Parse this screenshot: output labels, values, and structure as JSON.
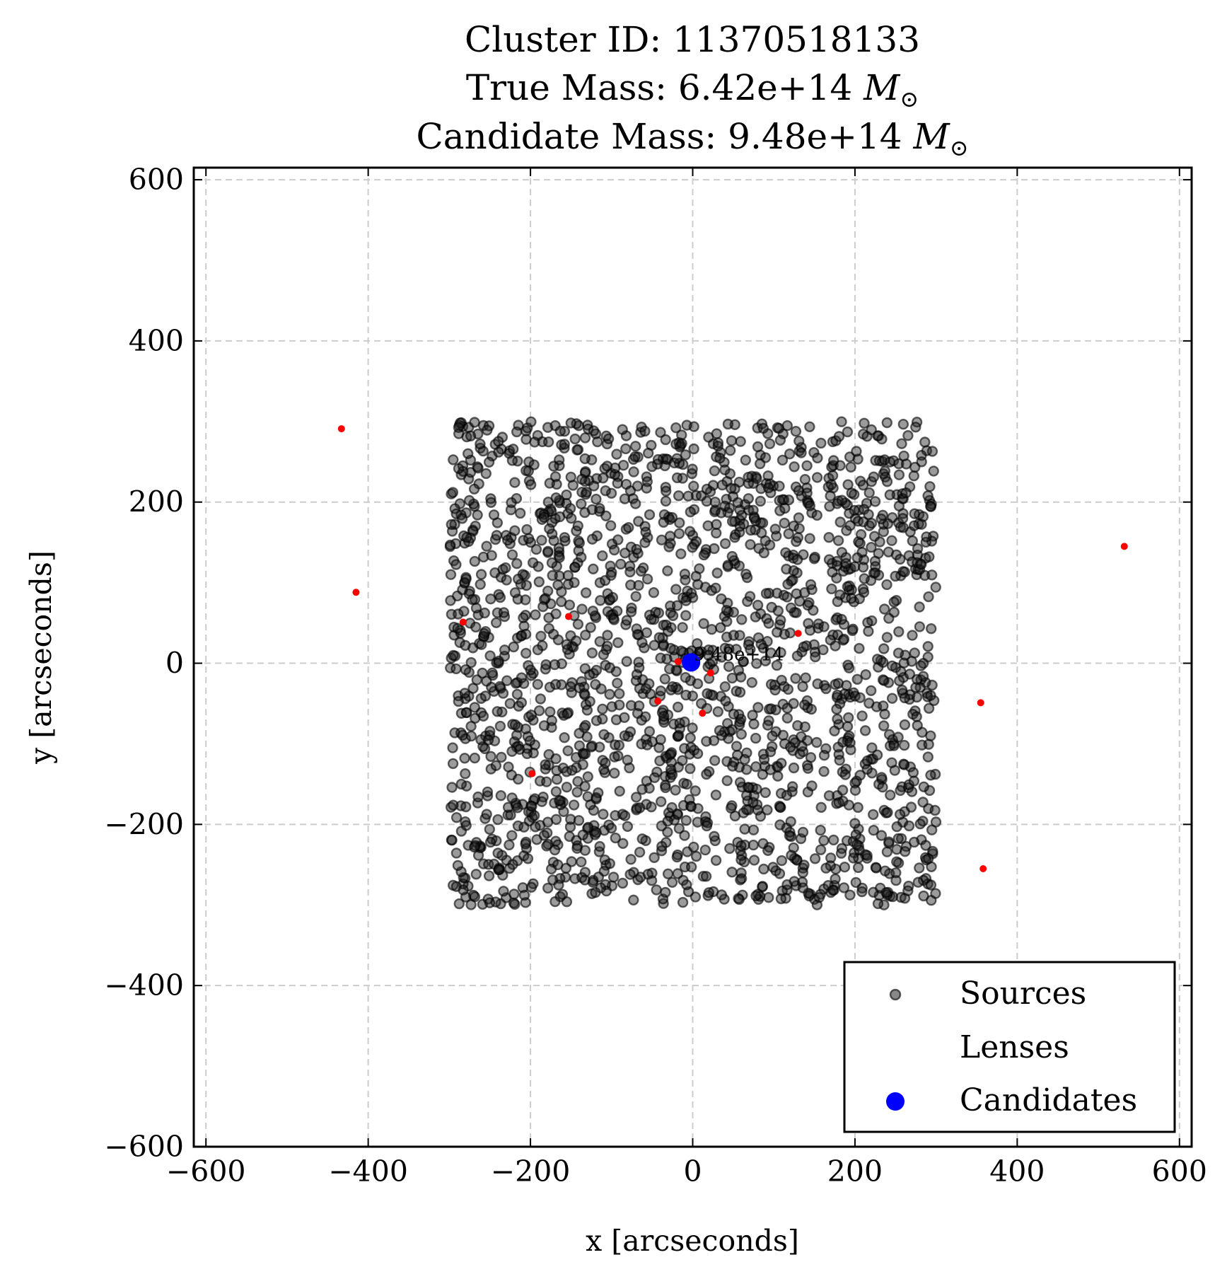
{
  "chart_data": {
    "type": "scatter",
    "title_lines": [
      "Cluster ID: 11370518133",
      "True Mass: 6.42e+14",
      "Candidate Mass: 9.48e+14"
    ],
    "mass_unit": "M",
    "mass_unit_sub": "⊙",
    "xlabel": "x [arcseconds]",
    "ylabel": "y [arcseconds]",
    "xlim": [
      -615,
      615
    ],
    "ylim": [
      -600,
      615
    ],
    "xticks": [
      -600,
      -400,
      -200,
      0,
      200,
      400,
      600
    ],
    "yticks": [
      -600,
      -400,
      -200,
      0,
      200,
      400,
      600
    ],
    "grid": true,
    "legend_position": "lower right",
    "legend": [
      "Sources",
      "Lenses",
      "Candidates"
    ],
    "colors": {
      "sources": "#000000",
      "lenses": "#ff0000",
      "candidates": "#0000ff"
    },
    "series": [
      {
        "name": "Sources",
        "distribution": "uniform",
        "count": 2000,
        "x_range": [
          -300,
          300
        ],
        "y_range": [
          -300,
          300
        ]
      },
      {
        "name": "Lenses",
        "points": [
          {
            "x": -433,
            "y": 291
          },
          {
            "x": -415,
            "y": 88
          },
          {
            "x": -283,
            "y": 51
          },
          {
            "x": -153,
            "y": 58
          },
          {
            "x": 130,
            "y": 37
          },
          {
            "x": 532,
            "y": 145
          },
          {
            "x": -18,
            "y": 2
          },
          {
            "x": 22,
            "y": -12
          },
          {
            "x": -43,
            "y": -47
          },
          {
            "x": 12,
            "y": -62
          },
          {
            "x": 355,
            "y": -49
          },
          {
            "x": -198,
            "y": -137
          },
          {
            "x": 358,
            "y": -255
          }
        ]
      },
      {
        "name": "Candidates",
        "points": [
          {
            "x": -2,
            "y": 1,
            "label": "9.48e+14"
          }
        ]
      }
    ]
  }
}
